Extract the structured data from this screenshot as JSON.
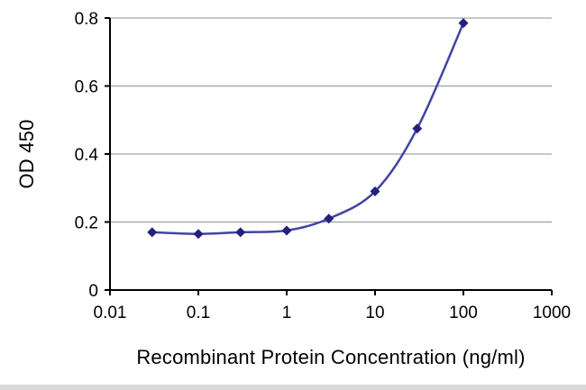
{
  "chart_data": {
    "type": "line",
    "title": "",
    "xlabel": "Recombinant Protein Concentration (ng/ml)",
    "ylabel": "OD 450",
    "xscale": "log",
    "xlim": [
      0.01,
      1000
    ],
    "ylim": [
      0,
      0.8
    ],
    "grid": "horizontal",
    "legend": "none",
    "x": [
      0.03,
      0.1,
      0.3,
      1,
      3,
      10,
      30,
      100
    ],
    "y": [
      0.17,
      0.165,
      0.17,
      0.175,
      0.21,
      0.29,
      0.475,
      0.785
    ],
    "x_ticks": {
      "values": [
        0.01,
        0.1,
        1,
        10,
        100,
        1000
      ],
      "labels": [
        "0.01",
        "0.1",
        "1",
        "10",
        "100",
        "1000"
      ]
    },
    "y_ticks": {
      "values": [
        0,
        0.2,
        0.4,
        0.6,
        0.8
      ],
      "labels": [
        "0",
        "0.2",
        "0.4",
        "0.6",
        "0.8"
      ]
    },
    "line_color": "#4343a5",
    "marker_color": "#22227e",
    "marker": "diamond",
    "axis_color": "#000000",
    "grid_color": "#909090"
  }
}
